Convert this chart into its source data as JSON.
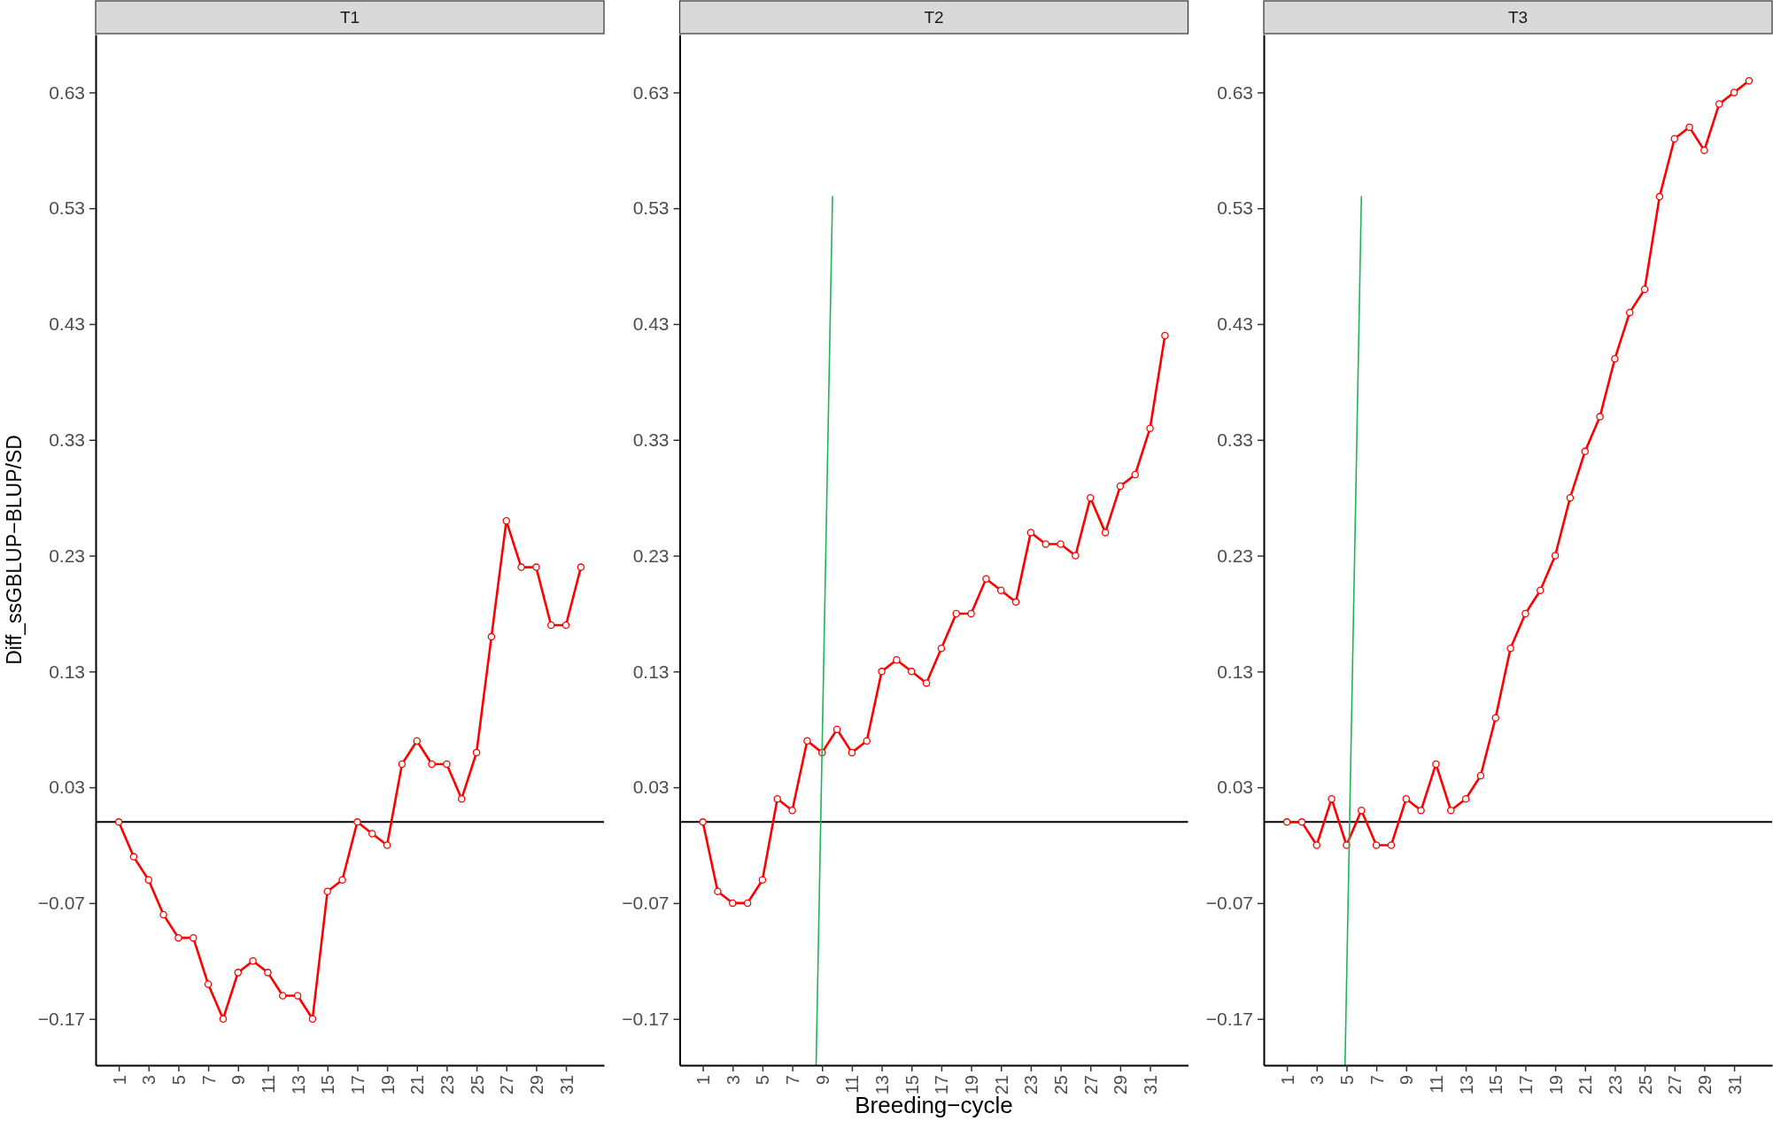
{
  "chart_data": [
    {
      "type": "line",
      "title": "T1",
      "ylabel": "Diff_ssGBLUP−BLUP/SD",
      "x": [
        1,
        2,
        3,
        4,
        5,
        6,
        7,
        8,
        9,
        10,
        11,
        12,
        13,
        14,
        15,
        16,
        17,
        18,
        19,
        20,
        21,
        22,
        23,
        24,
        25,
        26,
        27,
        28,
        29,
        30,
        31,
        32
      ],
      "series": [
        {
          "color": "#ff0000",
          "values": [
            0,
            -0.03,
            -0.05,
            -0.08,
            -0.1,
            -0.1,
            -0.14,
            -0.17,
            -0.13,
            -0.12,
            -0.13,
            -0.15,
            -0.15,
            -0.17,
            -0.06,
            -0.05,
            0,
            -0.01,
            -0.02,
            0.05,
            0.07,
            0.05,
            0.05,
            0.02,
            0.06,
            0.16,
            0.26,
            0.22,
            0.22,
            0.17,
            0.17,
            0.22
          ]
        }
      ],
      "xlim": [
        -0.55,
        33.55
      ],
      "xticks": [
        1,
        3,
        5,
        7,
        9,
        11,
        13,
        15,
        17,
        19,
        21,
        23,
        25,
        27,
        29,
        31
      ],
      "ylim": [
        -0.21,
        0.68
      ],
      "yticks": [
        -0.17,
        -0.07,
        0.03,
        0.13,
        0.23,
        0.33,
        0.43,
        0.53,
        0.63
      ],
      "ref_lines": [
        {
          "axis": "y",
          "value": 0,
          "color": "#000000"
        }
      ],
      "marker": "circle",
      "line_style": "solid"
    },
    {
      "type": "line",
      "title": "T2",
      "xlabel": "Breeding−cycle",
      "x": [
        1,
        2,
        3,
        4,
        5,
        6,
        7,
        8,
        9,
        10,
        11,
        12,
        13,
        14,
        15,
        16,
        17,
        18,
        19,
        20,
        21,
        22,
        23,
        24,
        25,
        26,
        27,
        28,
        29,
        30,
        31,
        32
      ],
      "series": [
        {
          "color": "#ff0000",
          "values": [
            0,
            -0.06,
            -0.07,
            -0.07,
            -0.05,
            0.02,
            0.01,
            0.07,
            0.06,
            0.08,
            0.06,
            0.07,
            0.13,
            0.14,
            0.13,
            0.12,
            0.15,
            0.18,
            0.18,
            0.21,
            0.2,
            0.19,
            0.25,
            0.24,
            0.24,
            0.23,
            0.28,
            0.25,
            0.29,
            0.3,
            0.34,
            0.42
          ]
        },
        {
          "type": "line",
          "color": "#1db45a",
          "marker": "none",
          "x": [
            8.6,
            9.7
          ],
          "values": [
            -0.21,
            0.54
          ]
        }
      ],
      "xlim": [
        -0.55,
        33.55
      ],
      "xticks": [
        1,
        3,
        5,
        7,
        9,
        11,
        13,
        15,
        17,
        19,
        21,
        23,
        25,
        27,
        29,
        31
      ],
      "ylim": [
        -0.21,
        0.68
      ],
      "yticks": [
        -0.17,
        -0.07,
        0.03,
        0.13,
        0.23,
        0.33,
        0.43,
        0.53,
        0.63
      ],
      "ref_lines": [
        {
          "axis": "y",
          "value": 0,
          "color": "#000000"
        }
      ],
      "marker": "circle",
      "line_style": "solid"
    },
    {
      "type": "line",
      "title": "T3",
      "x": [
        1,
        2,
        3,
        4,
        5,
        6,
        7,
        8,
        9,
        10,
        11,
        12,
        13,
        14,
        15,
        16,
        17,
        18,
        19,
        20,
        21,
        22,
        23,
        24,
        25,
        26,
        27,
        28,
        29,
        30,
        31,
        32
      ],
      "series": [
        {
          "color": "#ff0000",
          "values": [
            0,
            0,
            -0.02,
            0.02,
            -0.02,
            0.01,
            -0.02,
            -0.02,
            0.02,
            0.01,
            0.05,
            0.01,
            0.02,
            0.04,
            0.09,
            0.15,
            0.18,
            0.2,
            0.23,
            0.28,
            0.32,
            0.35,
            0.4,
            0.44,
            0.46,
            0.54,
            0.59,
            0.6,
            0.58,
            0.62,
            0.63,
            0.64
          ]
        },
        {
          "type": "line",
          "color": "#1db45a",
          "marker": "none",
          "x": [
            4.9,
            6.0
          ],
          "values": [
            -0.21,
            0.54
          ]
        }
      ],
      "xlim": [
        -0.55,
        33.55
      ],
      "xticks": [
        1,
        3,
        5,
        7,
        9,
        11,
        13,
        15,
        17,
        19,
        21,
        23,
        25,
        27,
        29,
        31
      ],
      "ylim": [
        -0.21,
        0.68
      ],
      "yticks": [
        -0.17,
        -0.07,
        0.03,
        0.13,
        0.23,
        0.33,
        0.43,
        0.53,
        0.63
      ],
      "ref_lines": [
        {
          "axis": "y",
          "value": 0,
          "color": "#000000"
        }
      ],
      "marker": "circle",
      "line_style": "solid"
    }
  ]
}
